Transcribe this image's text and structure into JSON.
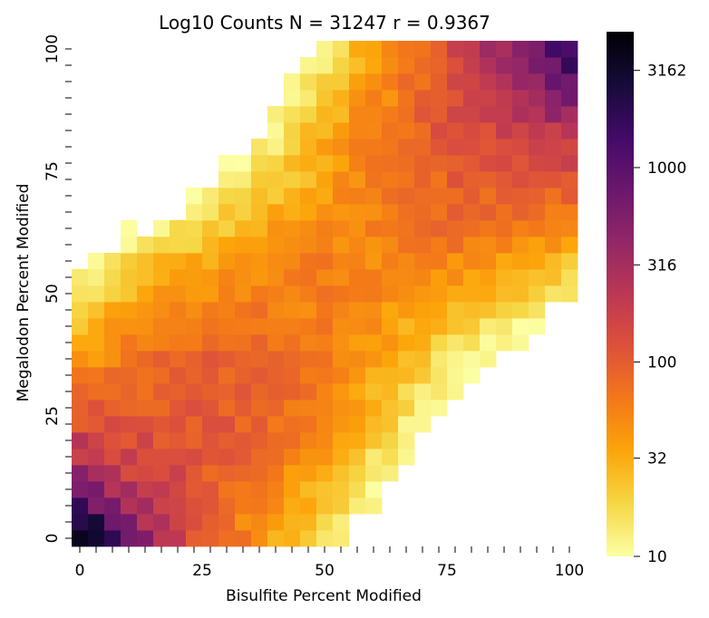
{
  "chart_data": {
    "type": "heatmap",
    "title": "Log10 Counts  N = 31247  r = 0.9367",
    "xlabel": "Bisulfite Percent Modified",
    "ylabel": "Megalodon Percent Modified",
    "xlim": [
      0,
      100
    ],
    "ylim": [
      0,
      100
    ],
    "x_ticks": [
      "0",
      "25",
      "50",
      "75",
      "100"
    ],
    "y_ticks": [
      "0",
      "25",
      "50",
      "75",
      "100"
    ],
    "bins": 31,
    "colormap": "inferno_r",
    "color_scale": "log",
    "color_range": [
      10,
      5000
    ],
    "colorbar": {
      "ticks": [
        10,
        32,
        100,
        316,
        1000,
        3162
      ],
      "tick_labels": [
        "10",
        "32",
        "100",
        "316",
        "1000",
        "3162"
      ]
    },
    "grid": false,
    "diagonal_counts": [
      5000,
      2500,
      700,
      280,
      180,
      150,
      120,
      110,
      110,
      100,
      100,
      90,
      80,
      70,
      60,
      60,
      60,
      55,
      55,
      60,
      70,
      80,
      90,
      100,
      120,
      140,
      180,
      250,
      400,
      700,
      1500
    ],
    "diagonal_spread": 7.5,
    "count_floor": 10
  }
}
